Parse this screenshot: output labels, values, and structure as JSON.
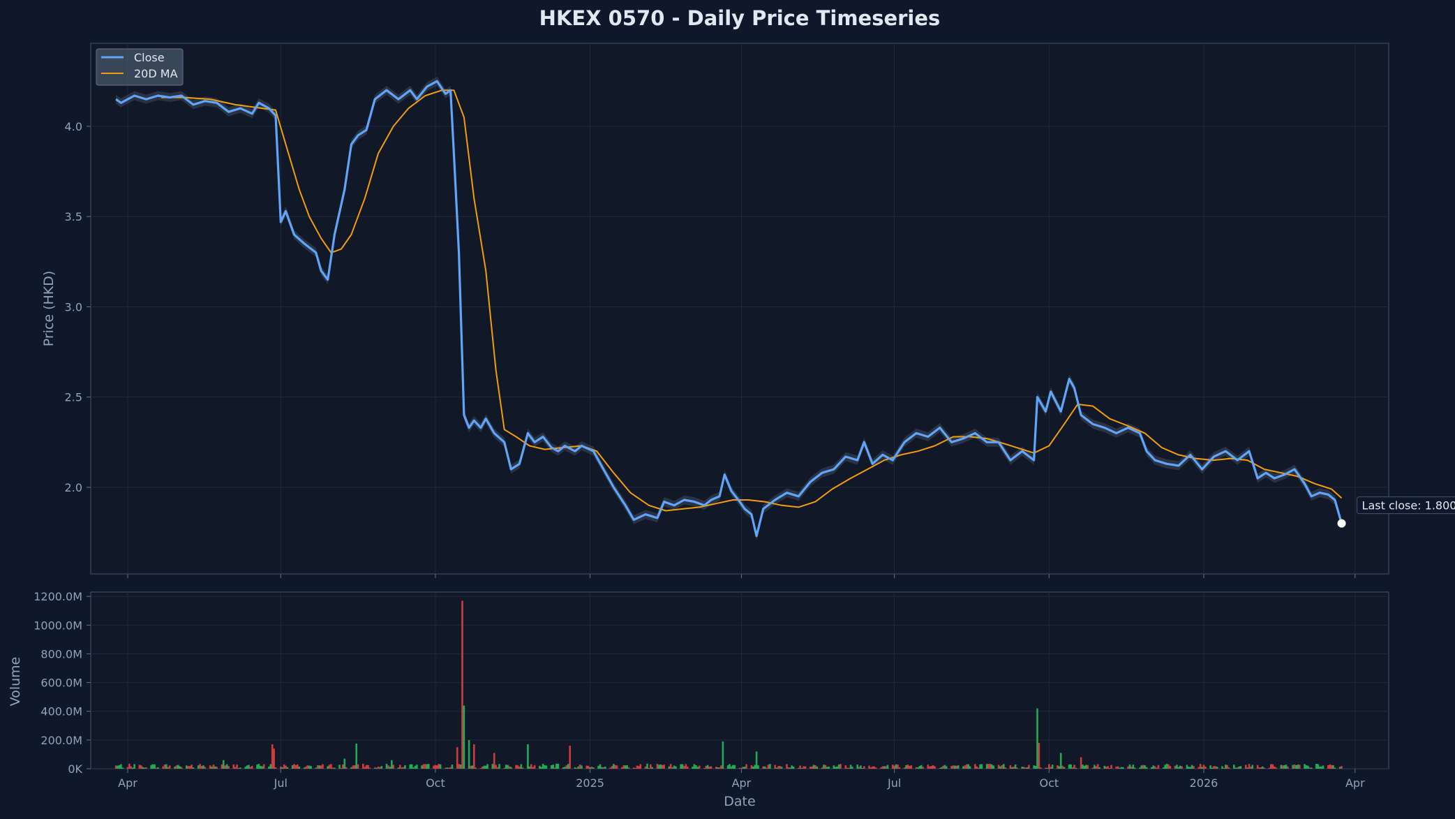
{
  "chart_data": {
    "type": "line",
    "title": "HKEX 0570 - Daily Price Timeseries",
    "xlabel": "Date",
    "ylabel": "Price (HKD)",
    "volume_ylabel": "Volume",
    "x_range": [
      "2024-03-10",
      "2026-04-21"
    ],
    "x_ticks": [
      {
        "date": "2024-04-01",
        "label": "Apr"
      },
      {
        "date": "2024-07-01",
        "label": "Jul"
      },
      {
        "date": "2024-10-01",
        "label": "Oct"
      },
      {
        "date": "2025-01-01",
        "label": "2025"
      },
      {
        "date": "2025-04-01",
        "label": "Apr"
      },
      {
        "date": "2025-07-01",
        "label": "Jul"
      },
      {
        "date": "2025-10-01",
        "label": "Oct"
      },
      {
        "date": "2026-01-01",
        "label": "2026"
      },
      {
        "date": "2026-04-01",
        "label": "Apr"
      }
    ],
    "price_ylim": [
      1.52,
      4.46
    ],
    "price_yticks": [
      {
        "value": 2.0,
        "label": "2.0"
      },
      {
        "value": 2.5,
        "label": "2.5"
      },
      {
        "value": 3.0,
        "label": "3.0"
      },
      {
        "value": 3.5,
        "label": "3.5"
      },
      {
        "value": 4.0,
        "label": "4.0"
      }
    ],
    "volume_ylim": [
      0,
      1230
    ],
    "volume_unit": "M",
    "volume_yticks": [
      {
        "value": 0,
        "label": "0K"
      },
      {
        "value": 200,
        "label": "200.0M"
      },
      {
        "value": 400,
        "label": "400.0M"
      },
      {
        "value": 600,
        "label": "600.0M"
      },
      {
        "value": 800,
        "label": "800.0M"
      },
      {
        "value": 1000,
        "label": "1000.0M"
      },
      {
        "value": 1200,
        "label": "1200.0M"
      }
    ],
    "grid": true,
    "legend_position": "top-left",
    "colors": {
      "close": "#60a5fa",
      "ma": "#f59e0b",
      "band": "#475569",
      "vol_up": "#22c55e",
      "vol_down": "#ef4444",
      "background": "#0f172a",
      "panel": "#111827",
      "grid": "#1f2a3c",
      "spine": "#334155"
    },
    "series": [
      {
        "name": "Close",
        "points": [
          [
            "2024-03-25",
            4.15
          ],
          [
            "2024-03-28",
            4.13
          ],
          [
            "2024-04-05",
            4.17
          ],
          [
            "2024-04-12",
            4.15
          ],
          [
            "2024-04-19",
            4.17
          ],
          [
            "2024-04-26",
            4.16
          ],
          [
            "2024-05-03",
            4.17
          ],
          [
            "2024-05-10",
            4.12
          ],
          [
            "2024-05-17",
            4.14
          ],
          [
            "2024-05-24",
            4.13
          ],
          [
            "2024-05-31",
            4.08
          ],
          [
            "2024-06-07",
            4.1
          ],
          [
            "2024-06-14",
            4.07
          ],
          [
            "2024-06-18",
            4.13
          ],
          [
            "2024-06-24",
            4.1
          ],
          [
            "2024-06-28",
            4.06
          ],
          [
            "2024-07-01",
            3.47
          ],
          [
            "2024-07-04",
            3.53
          ],
          [
            "2024-07-09",
            3.4
          ],
          [
            "2024-07-15",
            3.35
          ],
          [
            "2024-07-22",
            3.3
          ],
          [
            "2024-07-25",
            3.2
          ],
          [
            "2024-07-29",
            3.15
          ],
          [
            "2024-08-02",
            3.4
          ],
          [
            "2024-08-08",
            3.65
          ],
          [
            "2024-08-12",
            3.9
          ],
          [
            "2024-08-16",
            3.95
          ],
          [
            "2024-08-21",
            3.98
          ],
          [
            "2024-08-26",
            4.15
          ],
          [
            "2024-09-02",
            4.2
          ],
          [
            "2024-09-09",
            4.15
          ],
          [
            "2024-09-16",
            4.2
          ],
          [
            "2024-09-20",
            4.15
          ],
          [
            "2024-09-26",
            4.22
          ],
          [
            "2024-10-02",
            4.25
          ],
          [
            "2024-10-07",
            4.18
          ],
          [
            "2024-10-10",
            4.2
          ],
          [
            "2024-10-12",
            3.85
          ],
          [
            "2024-10-15",
            3.3
          ],
          [
            "2024-10-18",
            2.4
          ],
          [
            "2024-10-21",
            2.33
          ],
          [
            "2024-10-24",
            2.37
          ],
          [
            "2024-10-28",
            2.33
          ],
          [
            "2024-10-31",
            2.38
          ],
          [
            "2024-11-05",
            2.3
          ],
          [
            "2024-11-11",
            2.25
          ],
          [
            "2024-11-15",
            2.1
          ],
          [
            "2024-11-20",
            2.13
          ],
          [
            "2024-11-25",
            2.3
          ],
          [
            "2024-11-29",
            2.25
          ],
          [
            "2024-12-04",
            2.28
          ],
          [
            "2024-12-09",
            2.22
          ],
          [
            "2024-12-13",
            2.2
          ],
          [
            "2024-12-17",
            2.23
          ],
          [
            "2024-12-23",
            2.2
          ],
          [
            "2024-12-27",
            2.23
          ],
          [
            "2025-01-03",
            2.2
          ],
          [
            "2025-01-09",
            2.1
          ],
          [
            "2025-01-15",
            2.0
          ],
          [
            "2025-01-22",
            1.9
          ],
          [
            "2025-01-27",
            1.82
          ],
          [
            "2025-02-03",
            1.85
          ],
          [
            "2025-02-10",
            1.83
          ],
          [
            "2025-02-14",
            1.92
          ],
          [
            "2025-02-20",
            1.9
          ],
          [
            "2025-02-26",
            1.93
          ],
          [
            "2025-03-04",
            1.92
          ],
          [
            "2025-03-10",
            1.9
          ],
          [
            "2025-03-14",
            1.93
          ],
          [
            "2025-03-19",
            1.95
          ],
          [
            "2025-03-22",
            2.07
          ],
          [
            "2025-03-26",
            1.98
          ],
          [
            "2025-03-31",
            1.92
          ],
          [
            "2025-04-03",
            1.88
          ],
          [
            "2025-04-07",
            1.85
          ],
          [
            "2025-04-10",
            1.73
          ],
          [
            "2025-04-14",
            1.88
          ],
          [
            "2025-04-21",
            1.93
          ],
          [
            "2025-04-28",
            1.97
          ],
          [
            "2025-05-05",
            1.95
          ],
          [
            "2025-05-12",
            2.03
          ],
          [
            "2025-05-19",
            2.08
          ],
          [
            "2025-05-26",
            2.1
          ],
          [
            "2025-06-02",
            2.17
          ],
          [
            "2025-06-09",
            2.15
          ],
          [
            "2025-06-13",
            2.25
          ],
          [
            "2025-06-18",
            2.13
          ],
          [
            "2025-06-24",
            2.18
          ],
          [
            "2025-06-30",
            2.15
          ],
          [
            "2025-07-07",
            2.25
          ],
          [
            "2025-07-14",
            2.3
          ],
          [
            "2025-07-21",
            2.28
          ],
          [
            "2025-07-28",
            2.33
          ],
          [
            "2025-08-04",
            2.25
          ],
          [
            "2025-08-11",
            2.27
          ],
          [
            "2025-08-18",
            2.3
          ],
          [
            "2025-08-25",
            2.25
          ],
          [
            "2025-09-01",
            2.25
          ],
          [
            "2025-09-08",
            2.15
          ],
          [
            "2025-09-15",
            2.2
          ],
          [
            "2025-09-22",
            2.15
          ],
          [
            "2025-09-24",
            2.5
          ],
          [
            "2025-09-29",
            2.42
          ],
          [
            "2025-10-02",
            2.53
          ],
          [
            "2025-10-08",
            2.42
          ],
          [
            "2025-10-13",
            2.6
          ],
          [
            "2025-10-16",
            2.55
          ],
          [
            "2025-10-20",
            2.4
          ],
          [
            "2025-10-27",
            2.35
          ],
          [
            "2025-11-03",
            2.33
          ],
          [
            "2025-11-10",
            2.3
          ],
          [
            "2025-11-17",
            2.33
          ],
          [
            "2025-11-24",
            2.3
          ],
          [
            "2025-11-28",
            2.2
          ],
          [
            "2025-12-03",
            2.15
          ],
          [
            "2025-12-10",
            2.13
          ],
          [
            "2025-12-17",
            2.12
          ],
          [
            "2025-12-24",
            2.18
          ],
          [
            "2025-12-31",
            2.1
          ],
          [
            "2026-01-07",
            2.17
          ],
          [
            "2026-01-14",
            2.2
          ],
          [
            "2026-01-21",
            2.15
          ],
          [
            "2026-01-28",
            2.2
          ],
          [
            "2026-02-02",
            2.05
          ],
          [
            "2026-02-07",
            2.08
          ],
          [
            "2026-02-12",
            2.05
          ],
          [
            "2026-02-18",
            2.07
          ],
          [
            "2026-02-24",
            2.1
          ],
          [
            "2026-03-02",
            2.02
          ],
          [
            "2026-03-06",
            1.95
          ],
          [
            "2026-03-11",
            1.97
          ],
          [
            "2026-03-16",
            1.96
          ],
          [
            "2026-03-20",
            1.93
          ],
          [
            "2026-03-24",
            1.8
          ]
        ]
      },
      {
        "name": "20D MA",
        "points": [
          [
            "2024-04-21",
            4.16
          ],
          [
            "2024-05-05",
            4.16
          ],
          [
            "2024-05-20",
            4.15
          ],
          [
            "2024-06-04",
            4.12
          ],
          [
            "2024-06-20",
            4.1
          ],
          [
            "2024-06-28",
            4.09
          ],
          [
            "2024-07-04",
            3.9
          ],
          [
            "2024-07-12",
            3.65
          ],
          [
            "2024-07-18",
            3.5
          ],
          [
            "2024-07-25",
            3.38
          ],
          [
            "2024-07-31",
            3.3
          ],
          [
            "2024-08-06",
            3.32
          ],
          [
            "2024-08-12",
            3.4
          ],
          [
            "2024-08-20",
            3.6
          ],
          [
            "2024-08-28",
            3.85
          ],
          [
            "2024-09-06",
            4.0
          ],
          [
            "2024-09-15",
            4.1
          ],
          [
            "2024-09-25",
            4.17
          ],
          [
            "2024-10-05",
            4.2
          ],
          [
            "2024-10-12",
            4.2
          ],
          [
            "2024-10-18",
            4.05
          ],
          [
            "2024-10-24",
            3.6
          ],
          [
            "2024-10-31",
            3.2
          ],
          [
            "2024-11-06",
            2.65
          ],
          [
            "2024-11-11",
            2.32
          ],
          [
            "2024-11-18",
            2.28
          ],
          [
            "2024-11-26",
            2.23
          ],
          [
            "2024-12-05",
            2.21
          ],
          [
            "2024-12-16",
            2.22
          ],
          [
            "2024-12-27",
            2.23
          ],
          [
            "2025-01-05",
            2.2
          ],
          [
            "2025-01-15",
            2.08
          ],
          [
            "2025-01-25",
            1.97
          ],
          [
            "2025-02-05",
            1.9
          ],
          [
            "2025-02-15",
            1.87
          ],
          [
            "2025-02-25",
            1.88
          ],
          [
            "2025-03-07",
            1.89
          ],
          [
            "2025-03-17",
            1.91
          ],
          [
            "2025-03-27",
            1.93
          ],
          [
            "2025-04-05",
            1.93
          ],
          [
            "2025-04-15",
            1.92
          ],
          [
            "2025-04-25",
            1.9
          ],
          [
            "2025-05-05",
            1.89
          ],
          [
            "2025-05-15",
            1.92
          ],
          [
            "2025-05-25",
            1.99
          ],
          [
            "2025-06-05",
            2.05
          ],
          [
            "2025-06-15",
            2.1
          ],
          [
            "2025-06-25",
            2.15
          ],
          [
            "2025-07-05",
            2.18
          ],
          [
            "2025-07-15",
            2.2
          ],
          [
            "2025-07-25",
            2.23
          ],
          [
            "2025-08-05",
            2.28
          ],
          [
            "2025-08-15",
            2.28
          ],
          [
            "2025-08-25",
            2.27
          ],
          [
            "2025-09-05",
            2.24
          ],
          [
            "2025-09-15",
            2.21
          ],
          [
            "2025-09-22",
            2.19
          ],
          [
            "2025-10-01",
            2.23
          ],
          [
            "2025-10-10",
            2.35
          ],
          [
            "2025-10-18",
            2.46
          ],
          [
            "2025-10-27",
            2.45
          ],
          [
            "2025-11-06",
            2.38
          ],
          [
            "2025-11-17",
            2.34
          ],
          [
            "2025-11-27",
            2.3
          ],
          [
            "2025-12-07",
            2.22
          ],
          [
            "2025-12-17",
            2.18
          ],
          [
            "2025-12-27",
            2.16
          ],
          [
            "2026-01-07",
            2.15
          ],
          [
            "2026-01-17",
            2.16
          ],
          [
            "2026-01-27",
            2.15
          ],
          [
            "2026-02-06",
            2.1
          ],
          [
            "2026-02-16",
            2.08
          ],
          [
            "2026-02-26",
            2.06
          ],
          [
            "2026-03-08",
            2.02
          ],
          [
            "2026-03-18",
            1.99
          ],
          [
            "2026-03-24",
            1.94
          ]
        ]
      }
    ],
    "volume": {
      "spikes": [
        {
          "date": "2024-06-26",
          "value": 170,
          "dir": "down"
        },
        {
          "date": "2024-06-27",
          "value": 140,
          "dir": "down"
        },
        {
          "date": "2024-05-28",
          "value": 60,
          "dir": "up"
        },
        {
          "date": "2024-08-15",
          "value": 175,
          "dir": "up"
        },
        {
          "date": "2024-08-08",
          "value": 70,
          "dir": "up"
        },
        {
          "date": "2024-09-05",
          "value": 60,
          "dir": "up"
        },
        {
          "date": "2024-10-05",
          "value": 60,
          "dir": "up"
        },
        {
          "date": "2024-10-14",
          "value": 150,
          "dir": "down"
        },
        {
          "date": "2024-10-17",
          "value": 1170,
          "dir": "down"
        },
        {
          "date": "2024-10-18",
          "value": 440,
          "dir": "up"
        },
        {
          "date": "2024-10-19",
          "value": 230,
          "dir": "down"
        },
        {
          "date": "2024-10-21",
          "value": 200,
          "dir": "up"
        },
        {
          "date": "2024-10-24",
          "value": 170,
          "dir": "down"
        },
        {
          "date": "2024-10-26",
          "value": 120,
          "dir": "up"
        },
        {
          "date": "2024-11-05",
          "value": 110,
          "dir": "down"
        },
        {
          "date": "2024-11-10",
          "value": 90,
          "dir": "down"
        },
        {
          "date": "2024-11-25",
          "value": 170,
          "dir": "up"
        },
        {
          "date": "2024-12-20",
          "value": 160,
          "dir": "down"
        },
        {
          "date": "2025-03-23",
          "value": 260,
          "dir": "up"
        },
        {
          "date": "2025-03-21",
          "value": 190,
          "dir": "up"
        },
        {
          "date": "2025-04-10",
          "value": 120,
          "dir": "up"
        },
        {
          "date": "2025-09-24",
          "value": 420,
          "dir": "up"
        },
        {
          "date": "2025-09-25",
          "value": 180,
          "dir": "down"
        },
        {
          "date": "2025-10-08",
          "value": 110,
          "dir": "up"
        },
        {
          "date": "2025-10-12",
          "value": 155,
          "dir": "up"
        },
        {
          "date": "2025-10-20",
          "value": 80,
          "dir": "down"
        },
        {
          "date": "2025-08-02",
          "value": 90,
          "dir": "down"
        },
        {
          "date": "2026-02-14",
          "value": 90,
          "dir": "up"
        }
      ],
      "base_range": [
        5,
        35
      ]
    },
    "annotation": {
      "label": "Last close: 1.800",
      "date": "2026-03-24",
      "value": 1.8
    }
  }
}
